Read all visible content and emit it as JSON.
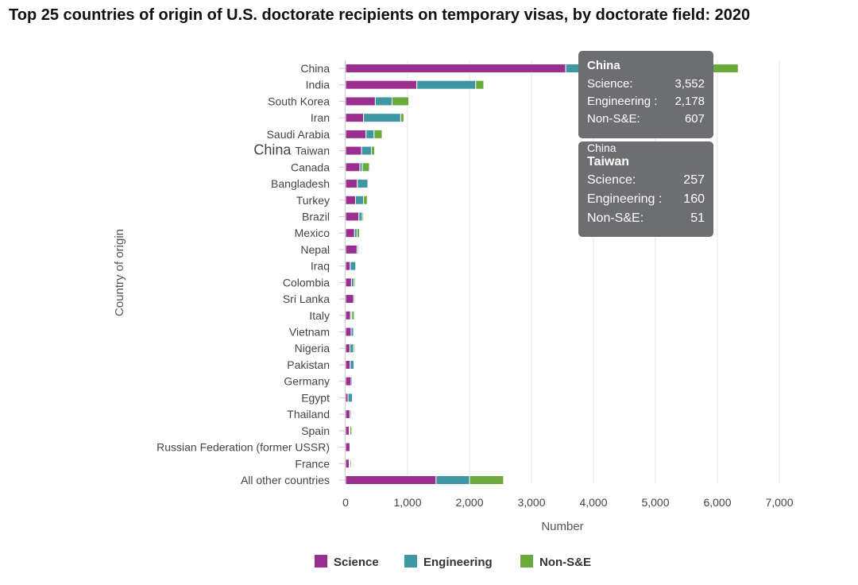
{
  "colors": {
    "science": "#9b2f8f",
    "engineering": "#3e97a3",
    "non_se": "#6aaa3a",
    "grid": "#e3e3e3",
    "tooltip_bg": "#6d6e71"
  },
  "chart_data": {
    "type": "bar",
    "orientation": "horizontal",
    "stacked": true,
    "title": "Top 25 countries of origin of U.S. doctorate recipients on temporary visas, by doctorate field: 2020",
    "xlabel": "Number",
    "ylabel": "Country of origin",
    "xlim": [
      0,
      7000
    ],
    "xticks": [
      0,
      1000,
      2000,
      3000,
      4000,
      5000,
      6000,
      7000
    ],
    "xtick_labels": [
      "0",
      "1,000",
      "2,000",
      "3,000",
      "4,000",
      "5,000",
      "6,000",
      "7,000"
    ],
    "grid": true,
    "legend_position": "bottom-center",
    "categories": [
      "China",
      "India",
      "South Korea",
      "Iran",
      "Saudi Arabia",
      "Taiwan",
      "Canada",
      "Bangladesh",
      "Turkey",
      "Brazil",
      "Mexico",
      "Nepal",
      "Iraq",
      "Colombia",
      "Sri Lanka",
      "Italy",
      "Vietnam",
      "Nigeria",
      "Pakistan",
      "Germany",
      "Egypt",
      "Thailand",
      "Spain",
      "Russian Federation (former USSR)",
      "France",
      "All other countries"
    ],
    "category_prefixes": {
      "Taiwan": "China"
    },
    "series": [
      {
        "name": "Science",
        "color_key": "science",
        "values": [
          3552,
          1150,
          480,
          290,
          330,
          257,
          230,
          190,
          160,
          215,
          145,
          185,
          75,
          95,
          130,
          80,
          90,
          70,
          75,
          90,
          40,
          70,
          60,
          70,
          60,
          1460
        ]
      },
      {
        "name": "Engineering",
        "color_key": "engineering",
        "values": [
          2178,
          950,
          270,
          600,
          130,
          160,
          40,
          170,
          130,
          55,
          40,
          20,
          90,
          40,
          20,
          20,
          40,
          60,
          60,
          20,
          70,
          20,
          10,
          10,
          10,
          540
        ]
      },
      {
        "name": "Non-S&E",
        "color_key": "non_se",
        "values": [
          607,
          130,
          270,
          50,
          130,
          51,
          115,
          5,
          60,
          20,
          40,
          5,
          5,
          20,
          5,
          40,
          5,
          20,
          5,
          5,
          5,
          5,
          30,
          5,
          20,
          550
        ]
      }
    ],
    "tooltips": [
      {
        "country": "China",
        "rows": [
          {
            "label": "Science:",
            "value": "3,552"
          },
          {
            "label": "Engineering :",
            "value": "2,178"
          },
          {
            "label": "Non-S&E:",
            "value": "607"
          }
        ]
      },
      {
        "prefix": "China",
        "country": "Taiwan",
        "rows": [
          {
            "label": "Science:",
            "value": "257"
          },
          {
            "label": "Engineering :",
            "value": "160"
          },
          {
            "label": "Non-S&E:",
            "value": "51"
          }
        ]
      }
    ]
  }
}
